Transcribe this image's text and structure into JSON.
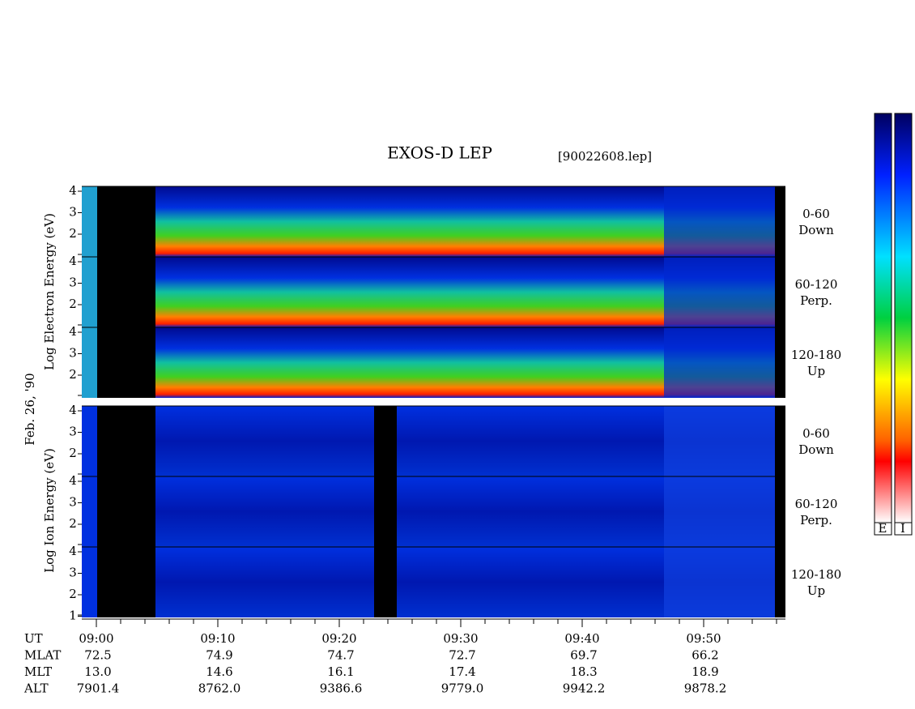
{
  "header": {
    "title": "EXOS-D LEP",
    "file": "[90022608.lep]"
  },
  "electron": {
    "axis_label": "Log Electron Energy (eV)",
    "panels": [
      {
        "angle": "0-60",
        "direction": "Down",
        "ticks": [
          "4",
          "3",
          "2"
        ]
      },
      {
        "angle": "60-120",
        "direction": "Perp.",
        "ticks": [
          "4",
          "3",
          "2"
        ]
      },
      {
        "angle": "120-180",
        "direction": "Up",
        "ticks": [
          "4",
          "3",
          "2"
        ]
      }
    ]
  },
  "date": "Feb. 26, '90",
  "ion": {
    "axis_label": "Log Ion Energy (eV)",
    "panels": [
      {
        "angle": "0-60",
        "direction": "Down",
        "ticks": [
          "4",
          "3",
          "2"
        ]
      },
      {
        "angle": "60-120",
        "direction": "Perp.",
        "ticks": [
          "4",
          "3",
          "2"
        ]
      },
      {
        "angle": "120-180",
        "direction": "Up",
        "ticks": [
          "4",
          "3",
          "2",
          "1"
        ]
      }
    ]
  },
  "time_axis": {
    "rows": [
      {
        "label": "UT",
        "values": [
          "09:00",
          "09:10",
          "09:20",
          "09:30",
          "09:40",
          "09:50"
        ]
      },
      {
        "label": "MLAT",
        "values": [
          "72.5",
          "74.9",
          "74.7",
          "72.7",
          "69.7",
          "66.2"
        ]
      },
      {
        "label": "MLT",
        "values": [
          "13.0",
          "14.6",
          "16.1",
          "17.4",
          "18.3",
          "18.9"
        ]
      },
      {
        "label": "ALT",
        "values": [
          "7901.4",
          "8762.0",
          "9386.6",
          "9779.0",
          "9942.2",
          "9878.2"
        ]
      }
    ]
  },
  "colorbar": {
    "labels": [
      "E",
      "I"
    ]
  }
}
